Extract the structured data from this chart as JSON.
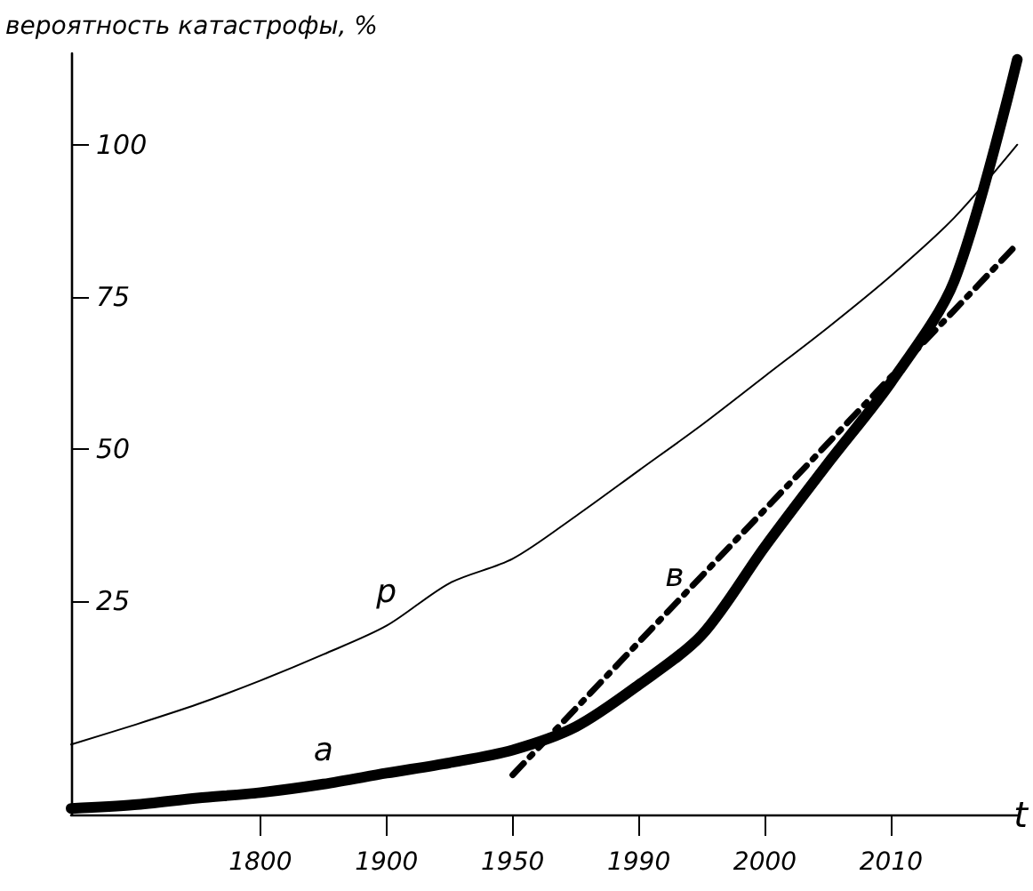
{
  "chart_data": {
    "type": "line",
    "ylabel": "вероятность катастрофы, %",
    "xlabel": "t",
    "categories": [
      null,
      null,
      null,
      "1800",
      null,
      "1900",
      null,
      "1950",
      null,
      "1990",
      null,
      "2000",
      null,
      "2010",
      null,
      null
    ],
    "ylim": [
      -10,
      115
    ],
    "yticks": [
      25,
      50,
      75,
      100
    ],
    "grid": false,
    "legend": false,
    "marker": "none",
    "series": [
      {
        "name": "p",
        "color": "#000000",
        "line_style": "solid",
        "values": [
          1.5,
          4.7,
          8.1,
          12,
          16.3,
          21,
          28,
          32,
          39,
          46.5,
          54,
          62,
          70,
          78.5,
          88,
          100
        ]
      },
      {
        "name": "a",
        "color": "#000000",
        "line_style": "solid",
        "values": [
          -9,
          -8.4,
          -7.3,
          -6.4,
          -5,
          -3.2,
          -1.5,
          0.6,
          4.4,
          11.3,
          19.5,
          34,
          47.7,
          61,
          77.6,
          114
        ]
      },
      {
        "name": "в",
        "color": "#000000",
        "line_style": "dashed",
        "values": [
          null,
          null,
          null,
          null,
          null,
          null,
          null,
          -3.5,
          7.4,
          18.3,
          29.2,
          40.1,
          51,
          61.9,
          72.8,
          83.7
        ]
      }
    ]
  }
}
